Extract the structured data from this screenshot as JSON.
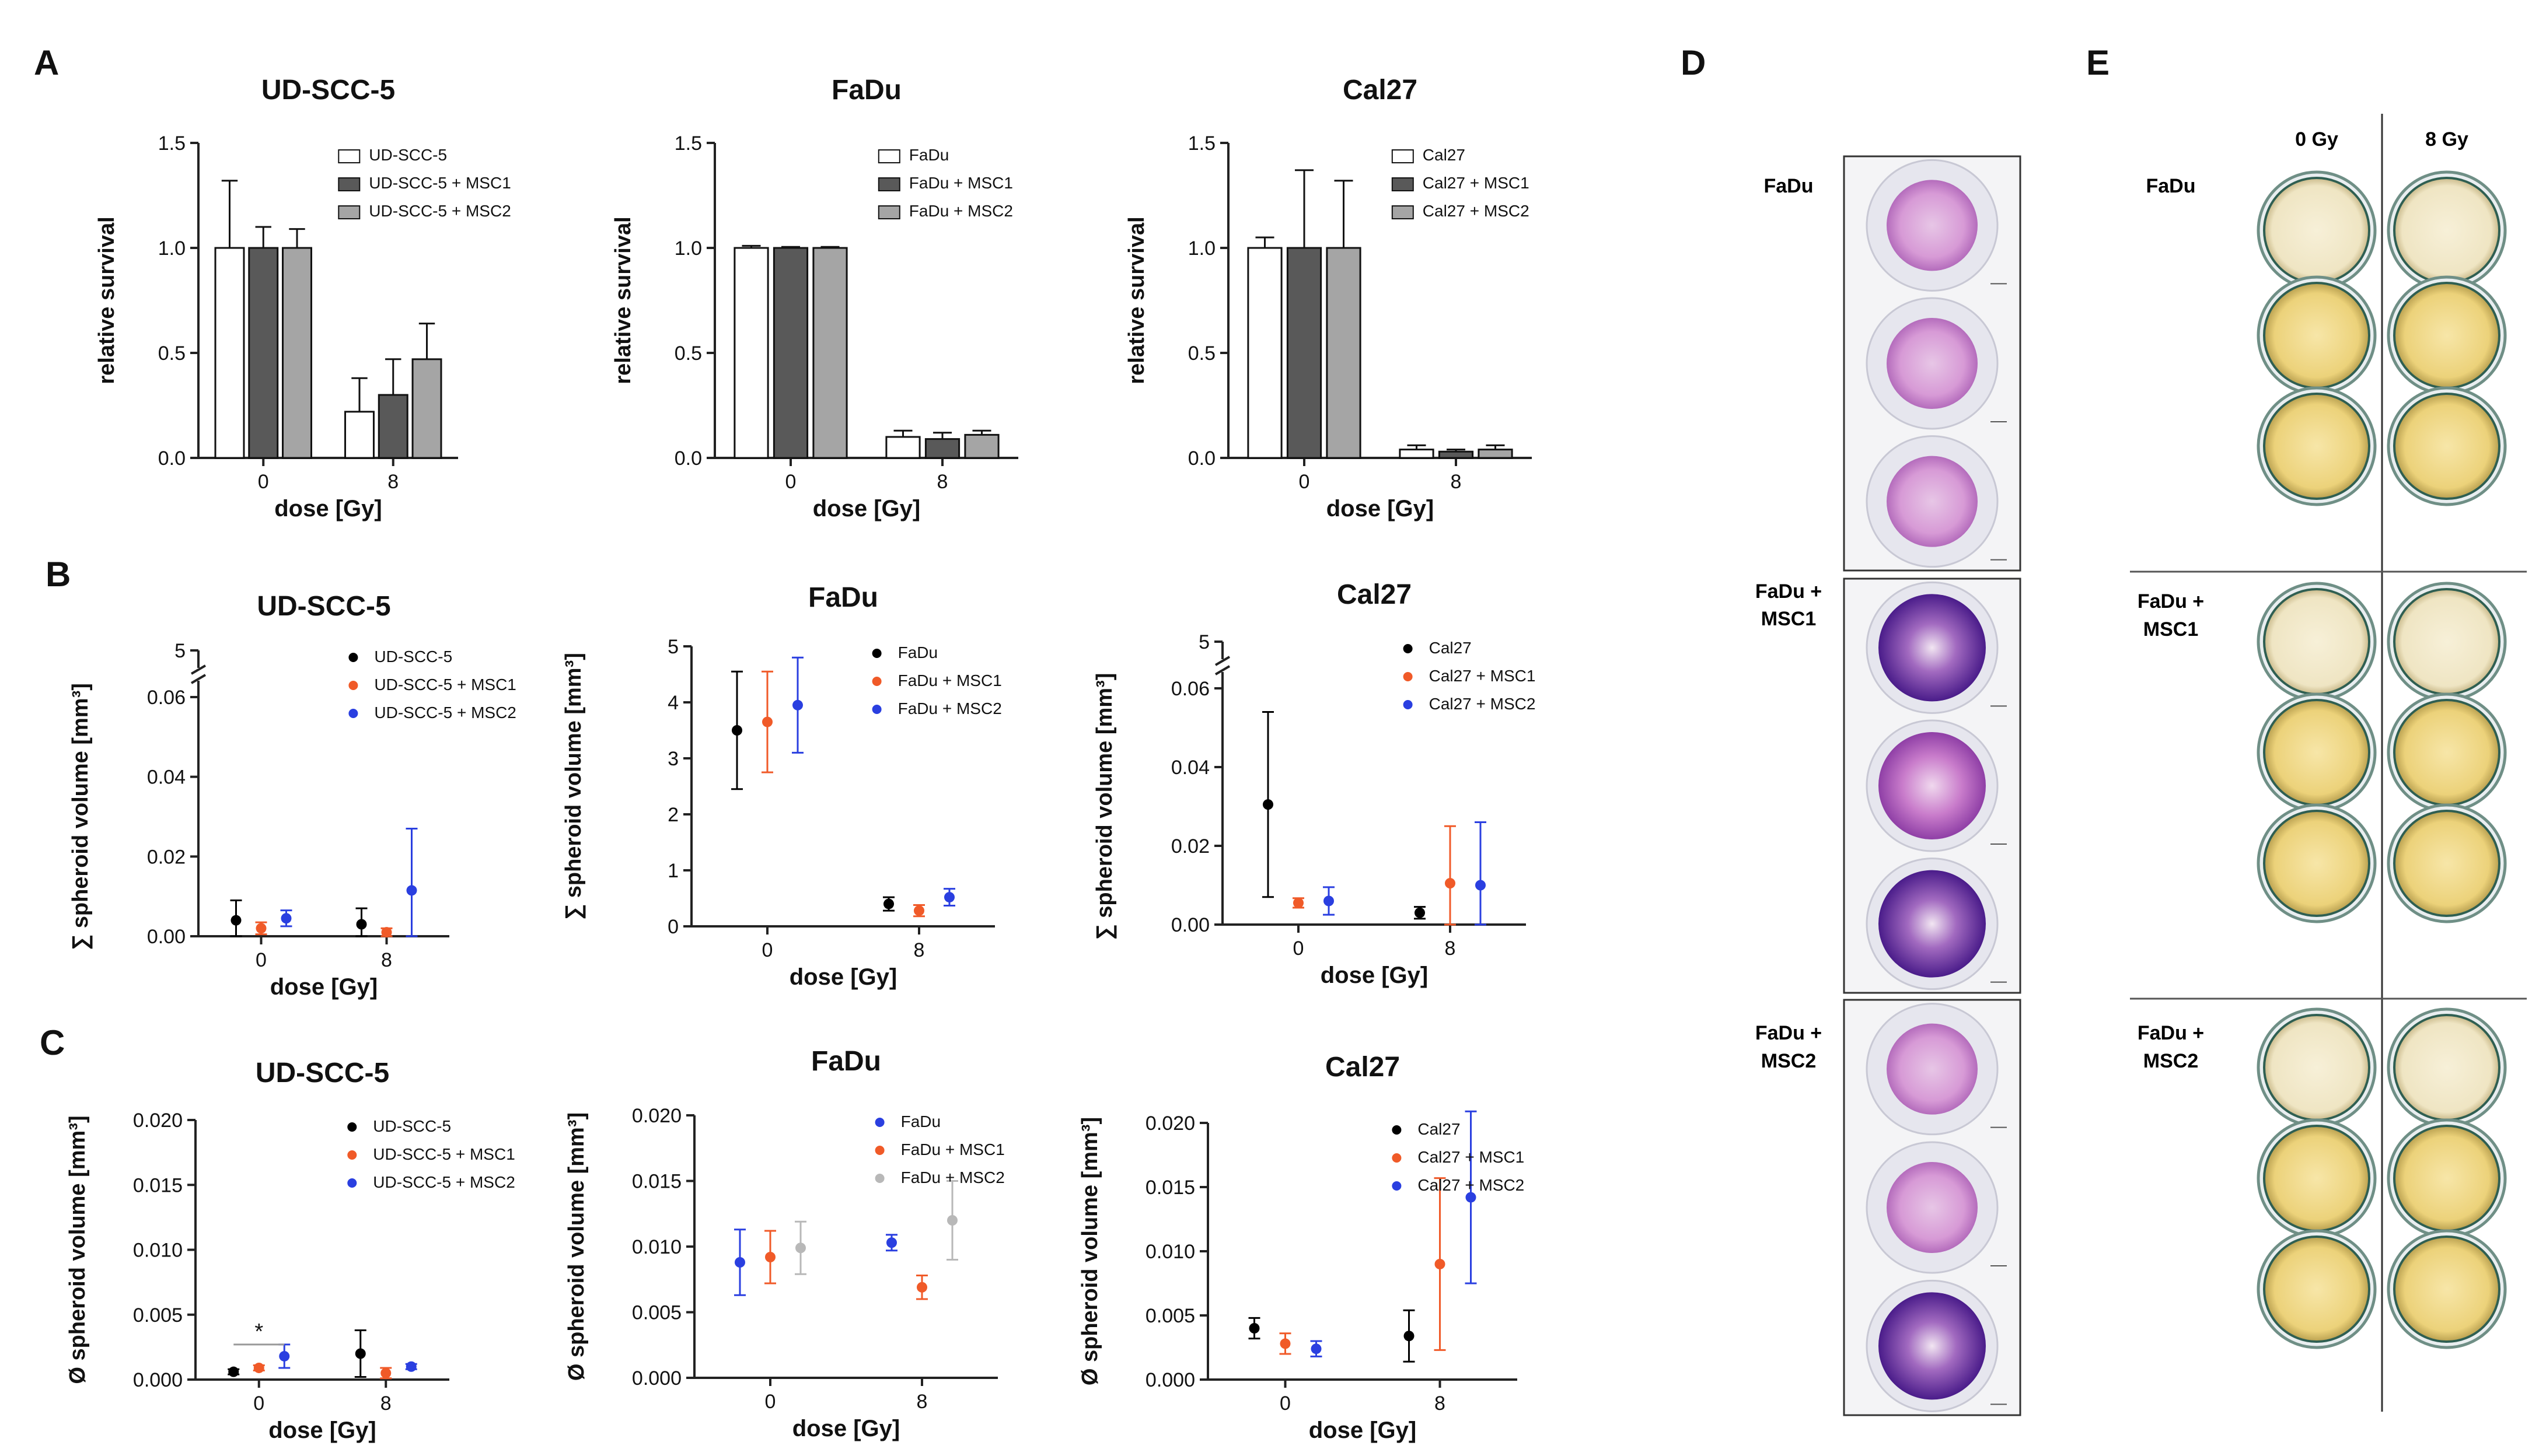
{
  "panels": {
    "A": "A",
    "B": "B",
    "C": "C",
    "D": "D",
    "E": "E"
  },
  "colors": {
    "bar_ctrl": "#ffffff",
    "bar_msc1": "#595959",
    "bar_msc2": "#a5a5a5",
    "dot_ctrl": "#000000",
    "dot_msc1": "#f05a28",
    "dot_msc2": "#2a3fe0",
    "dot_gray": "#b8b8b8",
    "stain_purple": "#7d3aa6",
    "plate_yellow": "#ecd27a"
  },
  "chart_data": [
    {
      "id": "A1",
      "type": "bar",
      "title": "UD-SCC-5",
      "xlabel": "dose [Gy]",
      "ylabel": "relative survival",
      "categories": [
        "0",
        "8"
      ],
      "ylim": [
        0,
        1.5
      ],
      "yticks": [
        "0.0",
        "0.5",
        "1.0",
        "1.5"
      ],
      "legend": "top-right",
      "series": [
        {
          "name": "UD-SCC-5",
          "values": [
            1.0,
            0.22
          ],
          "err": [
            0.32,
            0.16
          ],
          "color": "bar_ctrl"
        },
        {
          "name": "UD-SCC-5 + MSC1",
          "values": [
            1.0,
            0.3
          ],
          "err": [
            0.1,
            0.17
          ],
          "color": "bar_msc1"
        },
        {
          "name": "UD-SCC-5 + MSC2",
          "values": [
            1.0,
            0.47
          ],
          "err": [
            0.09,
            0.17
          ],
          "color": "bar_msc2"
        }
      ]
    },
    {
      "id": "A2",
      "type": "bar",
      "title": "FaDu",
      "xlabel": "dose [Gy]",
      "ylabel": "relative survival",
      "categories": [
        "0",
        "8"
      ],
      "ylim": [
        0,
        1.5
      ],
      "yticks": [
        "0.0",
        "0.5",
        "1.0",
        "1.5"
      ],
      "legend": "top-right",
      "series": [
        {
          "name": "FaDu",
          "values": [
            1.0,
            0.1
          ],
          "err": [
            0.01,
            0.03
          ],
          "color": "bar_ctrl"
        },
        {
          "name": "FaDu + MSC1",
          "values": [
            1.0,
            0.09
          ],
          "err": [
            0.005,
            0.03
          ],
          "color": "bar_msc1"
        },
        {
          "name": "FaDu + MSC2",
          "values": [
            1.0,
            0.11
          ],
          "err": [
            0.005,
            0.02
          ],
          "color": "bar_msc2"
        }
      ]
    },
    {
      "id": "A3",
      "type": "bar",
      "title": "Cal27",
      "xlabel": "dose [Gy]",
      "ylabel": "relative survival",
      "categories": [
        "0",
        "8"
      ],
      "ylim": [
        0,
        1.5
      ],
      "yticks": [
        "0.0",
        "0.5",
        "1.0",
        "1.5"
      ],
      "legend": "top-right",
      "series": [
        {
          "name": "Cal27",
          "values": [
            1.0,
            0.04
          ],
          "err": [
            0.05,
            0.02
          ],
          "color": "bar_ctrl"
        },
        {
          "name": "Cal27 + MSC1",
          "values": [
            1.0,
            0.03
          ],
          "err": [
            0.37,
            0.01
          ],
          "color": "bar_msc1"
        },
        {
          "name": "Cal27 + MSC2",
          "values": [
            1.0,
            0.04
          ],
          "err": [
            0.32,
            0.02
          ],
          "color": "bar_msc2"
        }
      ]
    },
    {
      "id": "B1",
      "type": "scatter",
      "title": "UD-SCC-5",
      "xlabel": "dose [Gy]",
      "ylabel": "∑ spheroid volume [mm³]",
      "categories": [
        "0",
        "8"
      ],
      "ylim": [
        0,
        0.06
      ],
      "yticks": [
        "0.00",
        "0.02",
        "0.04",
        "0.06"
      ],
      "break_tick": "5",
      "legend": "top-right",
      "series": [
        {
          "name": "UD-SCC-5",
          "values": [
            0.004,
            0.003
          ],
          "err": [
            0.005,
            0.004
          ],
          "color": "dot_ctrl"
        },
        {
          "name": "UD-SCC-5 + MSC1",
          "values": [
            0.002,
            0.001
          ],
          "err": [
            0.0015,
            0.001
          ],
          "color": "dot_msc1"
        },
        {
          "name": "UD-SCC-5 + MSC2",
          "values": [
            0.0045,
            0.0115
          ],
          "err": [
            0.002,
            0.0155
          ],
          "color": "dot_msc2"
        }
      ]
    },
    {
      "id": "B2",
      "type": "scatter",
      "title": "FaDu",
      "xlabel": "dose [Gy]",
      "ylabel": "∑ spheroid volume [mm³]",
      "categories": [
        "0",
        "8"
      ],
      "ylim": [
        0,
        5
      ],
      "yticks": [
        "0",
        "1",
        "2",
        "3",
        "4",
        "5"
      ],
      "legend": "top-right",
      "series": [
        {
          "name": "FaDu",
          "values": [
            3.5,
            0.4
          ],
          "err": [
            1.05,
            0.12
          ],
          "color": "dot_ctrl"
        },
        {
          "name": "FaDu + MSC1",
          "values": [
            3.65,
            0.28
          ],
          "err": [
            0.9,
            0.1
          ],
          "color": "dot_msc1"
        },
        {
          "name": "FaDu + MSC2",
          "values": [
            3.95,
            0.52
          ],
          "err": [
            0.85,
            0.15
          ],
          "color": "dot_msc2"
        }
      ]
    },
    {
      "id": "B3",
      "type": "scatter",
      "title": "Cal27",
      "xlabel": "dose [Gy]",
      "ylabel": "∑ spheroid volume [mm³]",
      "categories": [
        "0",
        "8"
      ],
      "ylim": [
        0,
        0.06
      ],
      "yticks": [
        "0.00",
        "0.02",
        "0.04",
        "0.06"
      ],
      "break_tick": "5",
      "legend": "top-right",
      "series": [
        {
          "name": "Cal27",
          "values": [
            0.0305,
            0.003
          ],
          "err": [
            0.0235,
            0.0015
          ],
          "color": "dot_ctrl"
        },
        {
          "name": "Cal27 + MSC1",
          "values": [
            0.0055,
            0.0105
          ],
          "err": [
            0.0012,
            0.0145
          ],
          "color": "dot_msc1"
        },
        {
          "name": "Cal27 + MSC2",
          "values": [
            0.006,
            0.01
          ],
          "err": [
            0.0035,
            0.016
          ],
          "color": "dot_msc2"
        }
      ]
    },
    {
      "id": "C1",
      "type": "scatter",
      "title": "UD-SCC-5",
      "xlabel": "dose [Gy]",
      "ylabel": "Ø spheroid volume [mm³]",
      "categories": [
        "0",
        "8"
      ],
      "ylim": [
        0,
        0.02
      ],
      "yticks": [
        "0.000",
        "0.005",
        "0.010",
        "0.015",
        "0.020"
      ],
      "legend": "top-right",
      "significance": "*",
      "series": [
        {
          "name": "UD-SCC-5",
          "values": [
            0.0006,
            0.002
          ],
          "err": [
            0.0002,
            0.0018
          ],
          "color": "dot_ctrl"
        },
        {
          "name": "UD-SCC-5 + MSC1",
          "values": [
            0.0009,
            0.0005
          ],
          "err": [
            0.0002,
            0.0004
          ],
          "color": "dot_msc1"
        },
        {
          "name": "UD-SCC-5 + MSC2",
          "values": [
            0.0018,
            0.001
          ],
          "err": [
            0.0009,
            0.0002
          ],
          "color": "dot_msc2"
        }
      ]
    },
    {
      "id": "C2",
      "type": "scatter",
      "title": "FaDu",
      "xlabel": "dose [Gy]",
      "ylabel": "Ø spheroid volume [mm³]",
      "categories": [
        "0",
        "8"
      ],
      "ylim": [
        0,
        0.02
      ],
      "yticks": [
        "0.000",
        "0.005",
        "0.010",
        "0.015",
        "0.020"
      ],
      "legend": "top-right",
      "series": [
        {
          "name": "FaDu",
          "values": [
            0.0088,
            0.0103
          ],
          "err": [
            0.0025,
            0.0006
          ],
          "color": "dot_msc2"
        },
        {
          "name": "FaDu + MSC1",
          "values": [
            0.0092,
            0.0069
          ],
          "err": [
            0.002,
            0.0009
          ],
          "color": "dot_msc1"
        },
        {
          "name": "FaDu + MSC2",
          "values": [
            0.0099,
            0.012
          ],
          "err": [
            0.002,
            0.003
          ],
          "color": "dot_gray"
        }
      ]
    },
    {
      "id": "C3",
      "type": "scatter",
      "title": "Cal27",
      "xlabel": "dose [Gy]",
      "ylabel": "Ø spheroid volume [mm³]",
      "categories": [
        "0",
        "8"
      ],
      "ylim": [
        0,
        0.02
      ],
      "yticks": [
        "0.000",
        "0.005",
        "0.010",
        "0.015",
        "0.020"
      ],
      "legend": "top-right",
      "series": [
        {
          "name": "Cal27",
          "values": [
            0.004,
            0.0034
          ],
          "err": [
            0.0008,
            0.002
          ],
          "color": "dot_ctrl"
        },
        {
          "name": "Cal27 + MSC1",
          "values": [
            0.0028,
            0.009
          ],
          "err": [
            0.0008,
            0.0067
          ],
          "color": "dot_msc1"
        },
        {
          "name": "Cal27 + MSC2",
          "values": [
            0.0024,
            0.0142
          ],
          "err": [
            0.0006,
            0.0067
          ],
          "color": "dot_msc2"
        }
      ]
    }
  ],
  "panel_d": {
    "rows": [
      {
        "label_line1": "FaDu",
        "label_line2": "",
        "stain": [
          "light",
          "light",
          "light"
        ]
      },
      {
        "label_line1": "FaDu +",
        "label_line2": "MSC1",
        "stain": [
          "dark",
          "medium",
          "dark"
        ]
      },
      {
        "label_line1": "FaDu +",
        "label_line2": "MSC2",
        "stain": [
          "light",
          "light",
          "dark"
        ]
      }
    ]
  },
  "panel_e": {
    "col_headers": [
      "0 Gy",
      "8 Gy"
    ],
    "rows": [
      {
        "label_line1": "FaDu",
        "label_line2": ""
      },
      {
        "label_line1": "FaDu +",
        "label_line2": "MSC1"
      },
      {
        "label_line1": "FaDu +",
        "label_line2": "MSC2"
      }
    ]
  }
}
